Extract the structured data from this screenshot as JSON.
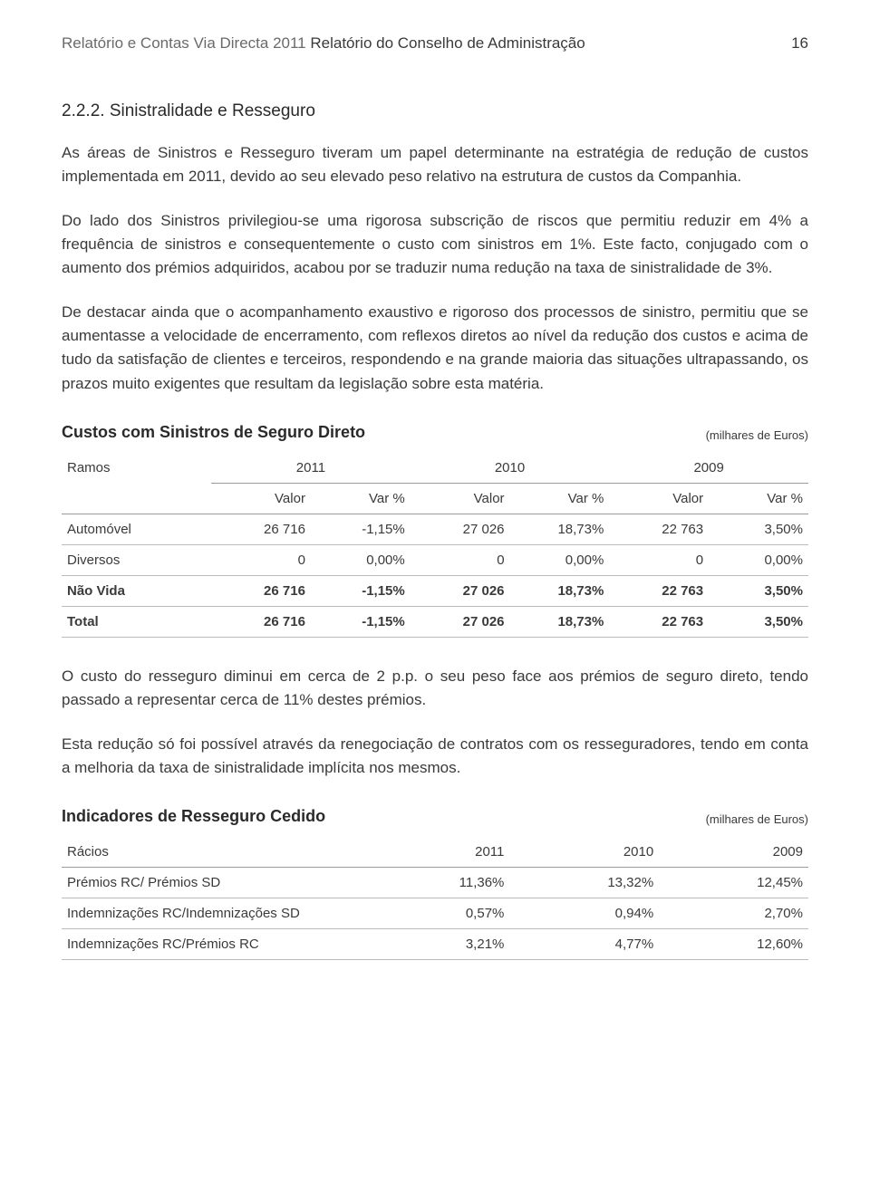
{
  "header": {
    "doc_title_light": "Relatório e Contas Via Directa 2011",
    "doc_title_dark": "Relatório do Conselho de Administração",
    "page_number": "16"
  },
  "section": {
    "heading": "2.2.2. Sinistralidade e Resseguro",
    "paragraphs": [
      "As áreas de Sinistros e Resseguro tiveram um papel determinante na estratégia de redução de custos implementada em 2011, devido ao seu elevado peso relativo na estrutura de custos da Companhia.",
      "Do lado dos Sinistros privilegiou-se uma rigorosa subscrição de riscos que permitiu reduzir em 4% a frequência de sinistros e consequentemente o custo com sinistros em 1%. Este facto, conjugado com o aumento dos prémios adquiridos, acabou por se traduzir numa redução na taxa de sinistralidade de 3%.",
      "De destacar ainda que o acompanhamento exaustivo e rigoroso dos processos de sinistro, permitiu que se aumentasse a velocidade de encerramento, com reflexos diretos ao nível da redução dos custos e acima de tudo da satisfação de clientes e terceiros, respondendo e na grande maioria das situações ultrapassando, os prazos muito exigentes que resultam da legislação sobre esta matéria."
    ]
  },
  "table1": {
    "title": "Custos com Sinistros de Seguro Direto",
    "unit": "(milhares de Euros)",
    "col_label": "Ramos",
    "years": [
      "2011",
      "2010",
      "2009"
    ],
    "subcols": [
      "Valor",
      "Var %"
    ],
    "rows": [
      {
        "label": "Automóvel",
        "bold": false,
        "cells": [
          "26 716",
          "-1,15%",
          "27 026",
          "18,73%",
          "22 763",
          "3,50%"
        ]
      },
      {
        "label": "Diversos",
        "bold": false,
        "cells": [
          "0",
          "0,00%",
          "0",
          "0,00%",
          "0",
          "0,00%"
        ]
      },
      {
        "label": "Não Vida",
        "bold": true,
        "cells": [
          "26 716",
          "-1,15%",
          "27 026",
          "18,73%",
          "22 763",
          "3,50%"
        ]
      },
      {
        "label": "Total",
        "bold": true,
        "cells": [
          "26 716",
          "-1,15%",
          "27 026",
          "18,73%",
          "22 763",
          "3,50%"
        ]
      }
    ]
  },
  "mid_paragraphs": [
    "O custo do resseguro diminui em cerca de 2 p.p. o seu peso face aos prémios de seguro direto, tendo passado a representar cerca de 11% destes prémios.",
    "Esta redução só foi possível através da renegociação de contratos com os resseguradores,  tendo em conta a melhoria da taxa de sinistralidade implícita nos mesmos."
  ],
  "table2": {
    "title": "Indicadores de Resseguro Cedido",
    "unit": "(milhares de Euros)",
    "col_label": "Rácios",
    "years": [
      "2011",
      "2010",
      "2009"
    ],
    "rows": [
      {
        "label": "Prémios RC/ Prémios SD",
        "cells": [
          "11,36%",
          "13,32%",
          "12,45%"
        ]
      },
      {
        "label": "Indemnizações RC/Indemnizações SD",
        "cells": [
          "0,57%",
          "0,94%",
          "2,70%"
        ]
      },
      {
        "label": "Indemnizações RC/Prémios RC",
        "cells": [
          "3,21%",
          "4,77%",
          "12,60%"
        ]
      }
    ]
  }
}
